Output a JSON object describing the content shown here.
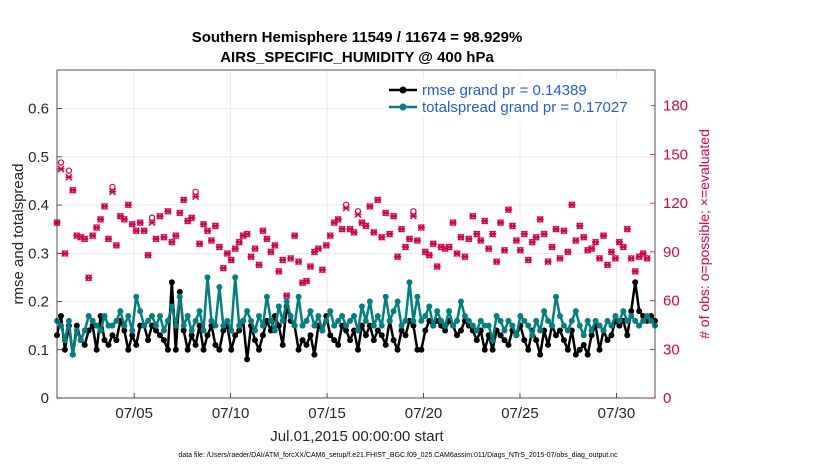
{
  "chart_data": {
    "type": "line",
    "title": "Southern Hemisphere 11549 / 11674 = 98.929%",
    "subtitle": "AIRS_SPECIFIC_HUMIDITY @ 400 hPa",
    "xlabel": "Jul.01,2015 00:00:00 start",
    "ylabel": "rmse and totalspread",
    "ylabel_right": "# of obs: o=possible; ×=evaluated",
    "xlim": [
      1,
      32
    ],
    "ylim": [
      0,
      0.68
    ],
    "ylim_right": [
      0,
      202
    ],
    "x_ticks": [
      5,
      10,
      15,
      20,
      25,
      30
    ],
    "x_tick_labels": [
      "07/05",
      "07/10",
      "07/15",
      "07/20",
      "07/25",
      "07/30"
    ],
    "y_ticks": [
      0,
      0.1,
      0.2,
      0.3,
      0.4,
      0.5,
      0.6
    ],
    "y_tick_labels": [
      "0",
      "0.1",
      "0.2",
      "0.3",
      "0.4",
      "0.5",
      "0.6"
    ],
    "y_ticks_right": [
      0,
      30,
      60,
      90,
      120,
      150,
      180
    ],
    "y_tick_labels_right": [
      "0",
      "30",
      "60",
      "90",
      "120",
      "150",
      "180"
    ],
    "grid": true,
    "legend_placement": "top-right",
    "footer": "data file: /Users/raeder/DAI/ATM_forcXX/CAM6_setup/f.e21.FHIST_BGC.f09_025.CAM6assim.011/Diags_NTrS_2015-07/obs_diag_output.nc",
    "colors": {
      "rmse": "#000000",
      "totalspread": "#008080",
      "obs": "#d6004f",
      "legend_text": "#1f5fd6"
    },
    "series": [
      {
        "name": "rmse grand pr = 0.14389",
        "key": "rmse",
        "values": [
          0.13,
          0.17,
          0.1,
          0.15,
          0.09,
          0.15,
          0.12,
          0.11,
          0.14,
          0.15,
          0.1,
          0.17,
          0.12,
          0.11,
          0.13,
          0.12,
          0.16,
          0.14,
          0.1,
          0.13,
          0.11,
          0.15,
          0.15,
          0.12,
          0.15,
          0.14,
          0.13,
          0.12,
          0.1,
          0.24,
          0.1,
          0.22,
          0.14,
          0.1,
          0.13,
          0.11,
          0.15,
          0.1,
          0.13,
          0.15,
          0.11,
          0.1,
          0.14,
          0.15,
          0.1,
          0.13,
          0.14,
          0.16,
          0.08,
          0.15,
          0.12,
          0.1,
          0.13,
          0.16,
          0.14,
          0.17,
          0.15,
          0.11,
          0.19,
          0.16,
          0.15,
          0.1,
          0.12,
          0.11,
          0.13,
          0.09,
          0.15,
          0.14,
          0.17,
          0.13,
          0.12,
          0.11,
          0.15,
          0.14,
          0.12,
          0.14,
          0.1,
          0.15,
          0.13,
          0.15,
          0.12,
          0.14,
          0.13,
          0.11,
          0.16,
          0.12,
          0.1,
          0.14,
          0.13,
          0.16,
          0.15,
          0.1,
          0.1,
          0.14,
          0.16,
          0.15,
          0.16,
          0.15,
          0.14,
          0.16,
          0.15,
          0.13,
          0.14,
          0.16,
          0.15,
          0.14,
          0.12,
          0.14,
          0.1,
          0.13,
          0.1,
          0.14,
          0.13,
          0.12,
          0.11,
          0.14,
          0.13,
          0.15,
          0.12,
          0.1,
          0.14,
          0.12,
          0.09,
          0.14,
          0.11,
          0.15,
          0.13,
          0.14,
          0.12,
          0.1,
          0.14,
          0.09,
          0.1,
          0.11,
          0.09,
          0.13,
          0.15,
          0.1,
          0.14,
          0.12,
          0.13,
          0.16,
          0.15,
          0.16,
          0.13,
          0.18,
          0.24,
          0.18,
          0.17,
          0.16,
          0.17,
          0.16
        ]
      },
      {
        "name": "totalspread grand pr = 0.17027",
        "key": "totalspread",
        "values": [
          0.16,
          0.15,
          0.12,
          0.16,
          0.09,
          0.14,
          0.12,
          0.14,
          0.17,
          0.16,
          0.15,
          0.14,
          0.17,
          0.15,
          0.15,
          0.16,
          0.18,
          0.15,
          0.17,
          0.14,
          0.21,
          0.18,
          0.15,
          0.16,
          0.17,
          0.15,
          0.17,
          0.14,
          0.16,
          0.19,
          0.15,
          0.21,
          0.15,
          0.17,
          0.14,
          0.16,
          0.18,
          0.14,
          0.25,
          0.16,
          0.15,
          0.23,
          0.15,
          0.16,
          0.14,
          0.25,
          0.15,
          0.16,
          0.18,
          0.16,
          0.14,
          0.17,
          0.15,
          0.21,
          0.16,
          0.14,
          0.19,
          0.16,
          0.2,
          0.17,
          0.15,
          0.21,
          0.15,
          0.16,
          0.18,
          0.15,
          0.17,
          0.14,
          0.16,
          0.18,
          0.15,
          0.16,
          0.17,
          0.15,
          0.16,
          0.17,
          0.14,
          0.19,
          0.16,
          0.2,
          0.15,
          0.17,
          0.15,
          0.21,
          0.16,
          0.18,
          0.2,
          0.15,
          0.16,
          0.24,
          0.16,
          0.21,
          0.16,
          0.17,
          0.19,
          0.15,
          0.18,
          0.16,
          0.15,
          0.18,
          0.15,
          0.16,
          0.2,
          0.17,
          0.16,
          0.15,
          0.14,
          0.16,
          0.15,
          0.15,
          0.12,
          0.17,
          0.16,
          0.14,
          0.16,
          0.15,
          0.13,
          0.17,
          0.16,
          0.15,
          0.13,
          0.16,
          0.14,
          0.18,
          0.16,
          0.15,
          0.21,
          0.17,
          0.15,
          0.14,
          0.16,
          0.18,
          0.15,
          0.13,
          0.16,
          0.14,
          0.16,
          0.15,
          0.14,
          0.16,
          0.15,
          0.17,
          0.16,
          0.18,
          0.16,
          0.17,
          0.16,
          0.15,
          0.16,
          0.17,
          0.16,
          0.15
        ]
      },
      {
        "name": "# of obs possible",
        "key": "obs_possible",
        "axis": "right",
        "values": [
          108,
          145,
          89,
          140,
          128,
          100,
          99,
          98,
          74,
          100,
          105,
          110,
          118,
          98,
          130,
          94,
          112,
          110,
          119,
          107,
          103,
          108,
          103,
          88,
          111,
          98,
          112,
          99,
          115,
          96,
          100,
          114,
          122,
          109,
          111,
          127,
          95,
          107,
          103,
          97,
          106,
          93,
          80,
          89,
          85,
          92,
          96,
          100,
          101,
          87,
          92,
          82,
          103,
          98,
          90,
          94,
          78,
          85,
          63,
          86,
          100,
          84,
          71,
          72,
          81,
          90,
          92,
          79,
          94,
          100,
          108,
          110,
          104,
          119,
          104,
          102,
          115,
          108,
          106,
          118,
          102,
          122,
          99,
          114,
          101,
          112,
          87,
          104,
          93,
          98,
          115,
          97,
          105,
          90,
          88,
          95,
          81,
          93,
          92,
          93,
          108,
          89,
          99,
          87,
          98,
          112,
          101,
          97,
          109,
          92,
          101,
          84,
          108,
          91,
          116,
          106,
          97,
          91,
          101,
          85,
          96,
          99,
          110,
          101,
          84,
          93,
          104,
          86,
          103,
          90,
          119,
          97,
          106,
          99,
          91,
          92,
          96,
          86,
          100,
          82,
          90,
          86,
          96,
          93,
          104,
          86,
          78,
          87,
          89,
          86
        ]
      },
      {
        "name": "# of obs evaluated",
        "key": "obs_evaluated",
        "axis": "right",
        "values": [
          108,
          141,
          89,
          136,
          128,
          100,
          99,
          98,
          74,
          100,
          105,
          110,
          118,
          98,
          127,
          94,
          112,
          110,
          119,
          107,
          103,
          108,
          103,
          88,
          108,
          98,
          112,
          99,
          115,
          96,
          100,
          114,
          122,
          109,
          111,
          124,
          95,
          107,
          103,
          97,
          106,
          93,
          80,
          89,
          85,
          92,
          96,
          100,
          101,
          87,
          92,
          82,
          103,
          98,
          90,
          94,
          78,
          85,
          63,
          86,
          100,
          84,
          71,
          72,
          81,
          90,
          92,
          79,
          94,
          100,
          108,
          110,
          104,
          117,
          104,
          102,
          113,
          108,
          106,
          118,
          102,
          122,
          99,
          114,
          101,
          112,
          87,
          104,
          93,
          98,
          112,
          97,
          105,
          90,
          88,
          95,
          81,
          93,
          92,
          93,
          108,
          89,
          99,
          87,
          98,
          112,
          101,
          97,
          109,
          92,
          101,
          84,
          108,
          91,
          116,
          106,
          97,
          91,
          101,
          85,
          96,
          99,
          110,
          101,
          84,
          93,
          104,
          86,
          103,
          90,
          119,
          97,
          106,
          99,
          91,
          92,
          96,
          86,
          100,
          82,
          90,
          86,
          96,
          93,
          104,
          86,
          78,
          87,
          89,
          86
        ]
      }
    ]
  }
}
